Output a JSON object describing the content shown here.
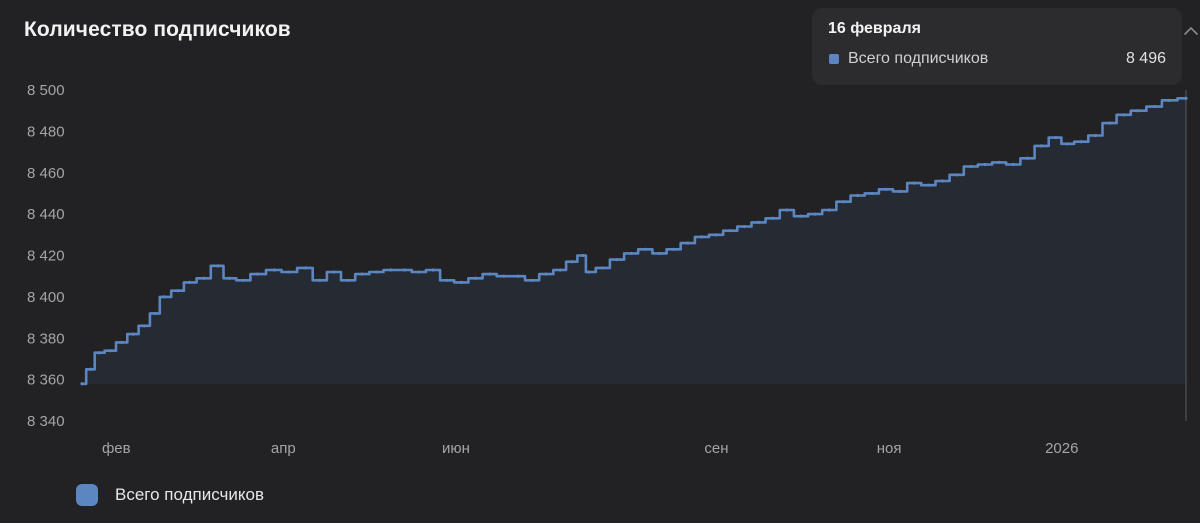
{
  "header": {
    "title": "Количество подписчиков"
  },
  "tooltip": {
    "date": "16 февраля",
    "series_label": "Всего подписчиков",
    "value": "8 496"
  },
  "legend": {
    "label": "Всего подписчиков"
  },
  "colors": {
    "series": "#5b86c2",
    "fill": "#262a33",
    "background": "#222224"
  },
  "icons": {
    "tooltip_caret": "chevron-up-icon"
  },
  "chart_data": {
    "type": "area",
    "title": "Количество подписчиков",
    "xlabel": "",
    "ylabel": "",
    "ylim": [
      8340,
      8500
    ],
    "yticks": [
      8500,
      8480,
      8460,
      8440,
      8420,
      8400,
      8380,
      8360,
      8340
    ],
    "ytick_labels": [
      "8 500",
      "8 480",
      "8 460",
      "8 440",
      "8 420",
      "8 400",
      "8 380",
      "8 360",
      "8 340"
    ],
    "x_range": [
      "2025-01-22",
      "2026-02-16"
    ],
    "xticks": [
      {
        "date": "2025-02-01",
        "label": "фев"
      },
      {
        "date": "2025-04-01",
        "label": "апр"
      },
      {
        "date": "2025-06-01",
        "label": "июн"
      },
      {
        "date": "2025-09-01",
        "label": "сен"
      },
      {
        "date": "2025-11-01",
        "label": "ноя"
      },
      {
        "date": "2026-01-01",
        "label": "2026"
      }
    ],
    "legend_position": "bottom-left",
    "series": [
      {
        "name": "Всего подписчиков",
        "points": [
          [
            "2025-01-22",
            8358
          ],
          [
            "2025-01-25",
            8365
          ],
          [
            "2025-01-28",
            8373
          ],
          [
            "2025-02-01",
            8374
          ],
          [
            "2025-02-05",
            8378
          ],
          [
            "2025-02-09",
            8382
          ],
          [
            "2025-02-13",
            8386
          ],
          [
            "2025-02-17",
            8392
          ],
          [
            "2025-02-20",
            8400
          ],
          [
            "2025-02-25",
            8403
          ],
          [
            "2025-03-01",
            8407
          ],
          [
            "2025-03-06",
            8409
          ],
          [
            "2025-03-11",
            8415
          ],
          [
            "2025-03-15",
            8409
          ],
          [
            "2025-03-20",
            8408
          ],
          [
            "2025-03-25",
            8411
          ],
          [
            "2025-03-31",
            8413
          ],
          [
            "2025-04-05",
            8412
          ],
          [
            "2025-04-11",
            8414
          ],
          [
            "2025-04-16",
            8408
          ],
          [
            "2025-04-21",
            8412
          ],
          [
            "2025-04-26",
            8408
          ],
          [
            "2025-05-01",
            8411
          ],
          [
            "2025-05-06",
            8412
          ],
          [
            "2025-05-11",
            8413
          ],
          [
            "2025-05-16",
            8413
          ],
          [
            "2025-05-21",
            8412
          ],
          [
            "2025-05-26",
            8413
          ],
          [
            "2025-05-31",
            8408
          ],
          [
            "2025-06-05",
            8407
          ],
          [
            "2025-06-10",
            8409
          ],
          [
            "2025-06-15",
            8411
          ],
          [
            "2025-06-20",
            8410
          ],
          [
            "2025-06-25",
            8410
          ],
          [
            "2025-06-30",
            8408
          ],
          [
            "2025-07-05",
            8411
          ],
          [
            "2025-07-10",
            8413
          ],
          [
            "2025-07-14",
            8417
          ],
          [
            "2025-07-18",
            8420
          ],
          [
            "2025-07-20",
            8412
          ],
          [
            "2025-07-25",
            8414
          ],
          [
            "2025-07-30",
            8418
          ],
          [
            "2025-08-04",
            8421
          ],
          [
            "2025-08-09",
            8423
          ],
          [
            "2025-08-14",
            8421
          ],
          [
            "2025-08-19",
            8423
          ],
          [
            "2025-08-24",
            8426
          ],
          [
            "2025-08-29",
            8429
          ],
          [
            "2025-09-03",
            8430
          ],
          [
            "2025-09-08",
            8432
          ],
          [
            "2025-09-13",
            8434
          ],
          [
            "2025-09-18",
            8436
          ],
          [
            "2025-09-23",
            8438
          ],
          [
            "2025-09-28",
            8442
          ],
          [
            "2025-10-03",
            8439
          ],
          [
            "2025-10-08",
            8440
          ],
          [
            "2025-10-13",
            8442
          ],
          [
            "2025-10-18",
            8446
          ],
          [
            "2025-10-23",
            8449
          ],
          [
            "2025-10-28",
            8450
          ],
          [
            "2025-11-02",
            8452
          ],
          [
            "2025-11-07",
            8451
          ],
          [
            "2025-11-12",
            8455
          ],
          [
            "2025-11-17",
            8454
          ],
          [
            "2025-11-22",
            8456
          ],
          [
            "2025-11-27",
            8459
          ],
          [
            "2025-12-02",
            8463
          ],
          [
            "2025-12-07",
            8464
          ],
          [
            "2025-12-12",
            8465
          ],
          [
            "2025-12-17",
            8464
          ],
          [
            "2025-12-22",
            8467
          ],
          [
            "2025-12-27",
            8473
          ],
          [
            "2026-01-01",
            8477
          ],
          [
            "2026-01-05",
            8474
          ],
          [
            "2026-01-10",
            8475
          ],
          [
            "2026-01-15",
            8478
          ],
          [
            "2026-01-20",
            8484
          ],
          [
            "2026-01-25",
            8488
          ],
          [
            "2026-01-30",
            8490
          ],
          [
            "2026-02-05",
            8492
          ],
          [
            "2026-02-10",
            8495
          ],
          [
            "2026-02-16",
            8496
          ]
        ]
      }
    ]
  }
}
